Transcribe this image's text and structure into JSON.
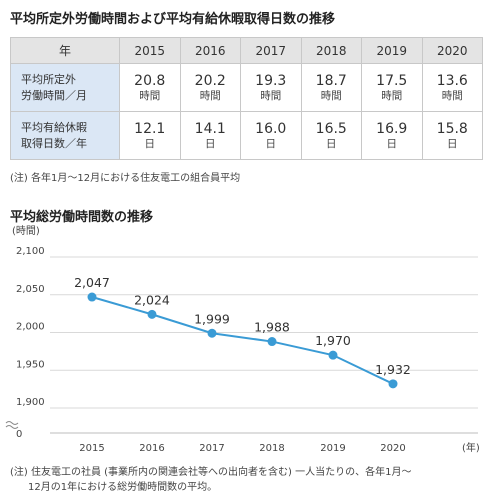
{
  "table_section": {
    "title": "平均所定外労働時間および平均有給休暇取得日数の推移",
    "header_label": "年",
    "years": [
      "2015",
      "2016",
      "2017",
      "2018",
      "2019",
      "2020"
    ],
    "rows": [
      {
        "label_line1": "平均所定外",
        "label_line2": "労働時間／月",
        "values": [
          "20.8",
          "20.2",
          "19.3",
          "18.7",
          "17.5",
          "13.6"
        ],
        "unit": "時間"
      },
      {
        "label_line1": "平均有給休暇",
        "label_line2": "取得日数／年",
        "values": [
          "12.1",
          "14.1",
          "16.0",
          "16.5",
          "16.9",
          "15.8"
        ],
        "unit": "日"
      }
    ],
    "note": "(注) 各年1月〜12月における住友電工の組合員平均"
  },
  "chart_section": {
    "title": "平均総労働時間数の推移",
    "note_line1": "(注) 住友電工の社員 (事業所内の関連会社等への出向者を含む) 一人当たりの、各年1月〜",
    "note_line2": "12月の1年における総労働時間数の平均。"
  },
  "chart_data": {
    "type": "line",
    "x": [
      2015,
      2016,
      2017,
      2018,
      2019,
      2020
    ],
    "categories": [
      "2015",
      "2016",
      "2017",
      "2018",
      "2019",
      "2020"
    ],
    "values": [
      2047,
      2024,
      1999,
      1988,
      1970,
      1932
    ],
    "data_labels": [
      "2,047",
      "2,024",
      "1,999",
      "1,988",
      "1,970",
      "1,932"
    ],
    "ylabel": "(時間)",
    "xlabel": "(年)",
    "ylim": [
      1900,
      2100
    ],
    "y_ticks": [
      2100,
      2050,
      2000,
      1950,
      1900
    ],
    "y_tick_labels": [
      "2,100",
      "2,050",
      "2,000",
      "1,950",
      "1,900"
    ],
    "y_baseline_label": "0",
    "axis_break": true,
    "grid": true,
    "line_color": "#3a9bd5"
  }
}
